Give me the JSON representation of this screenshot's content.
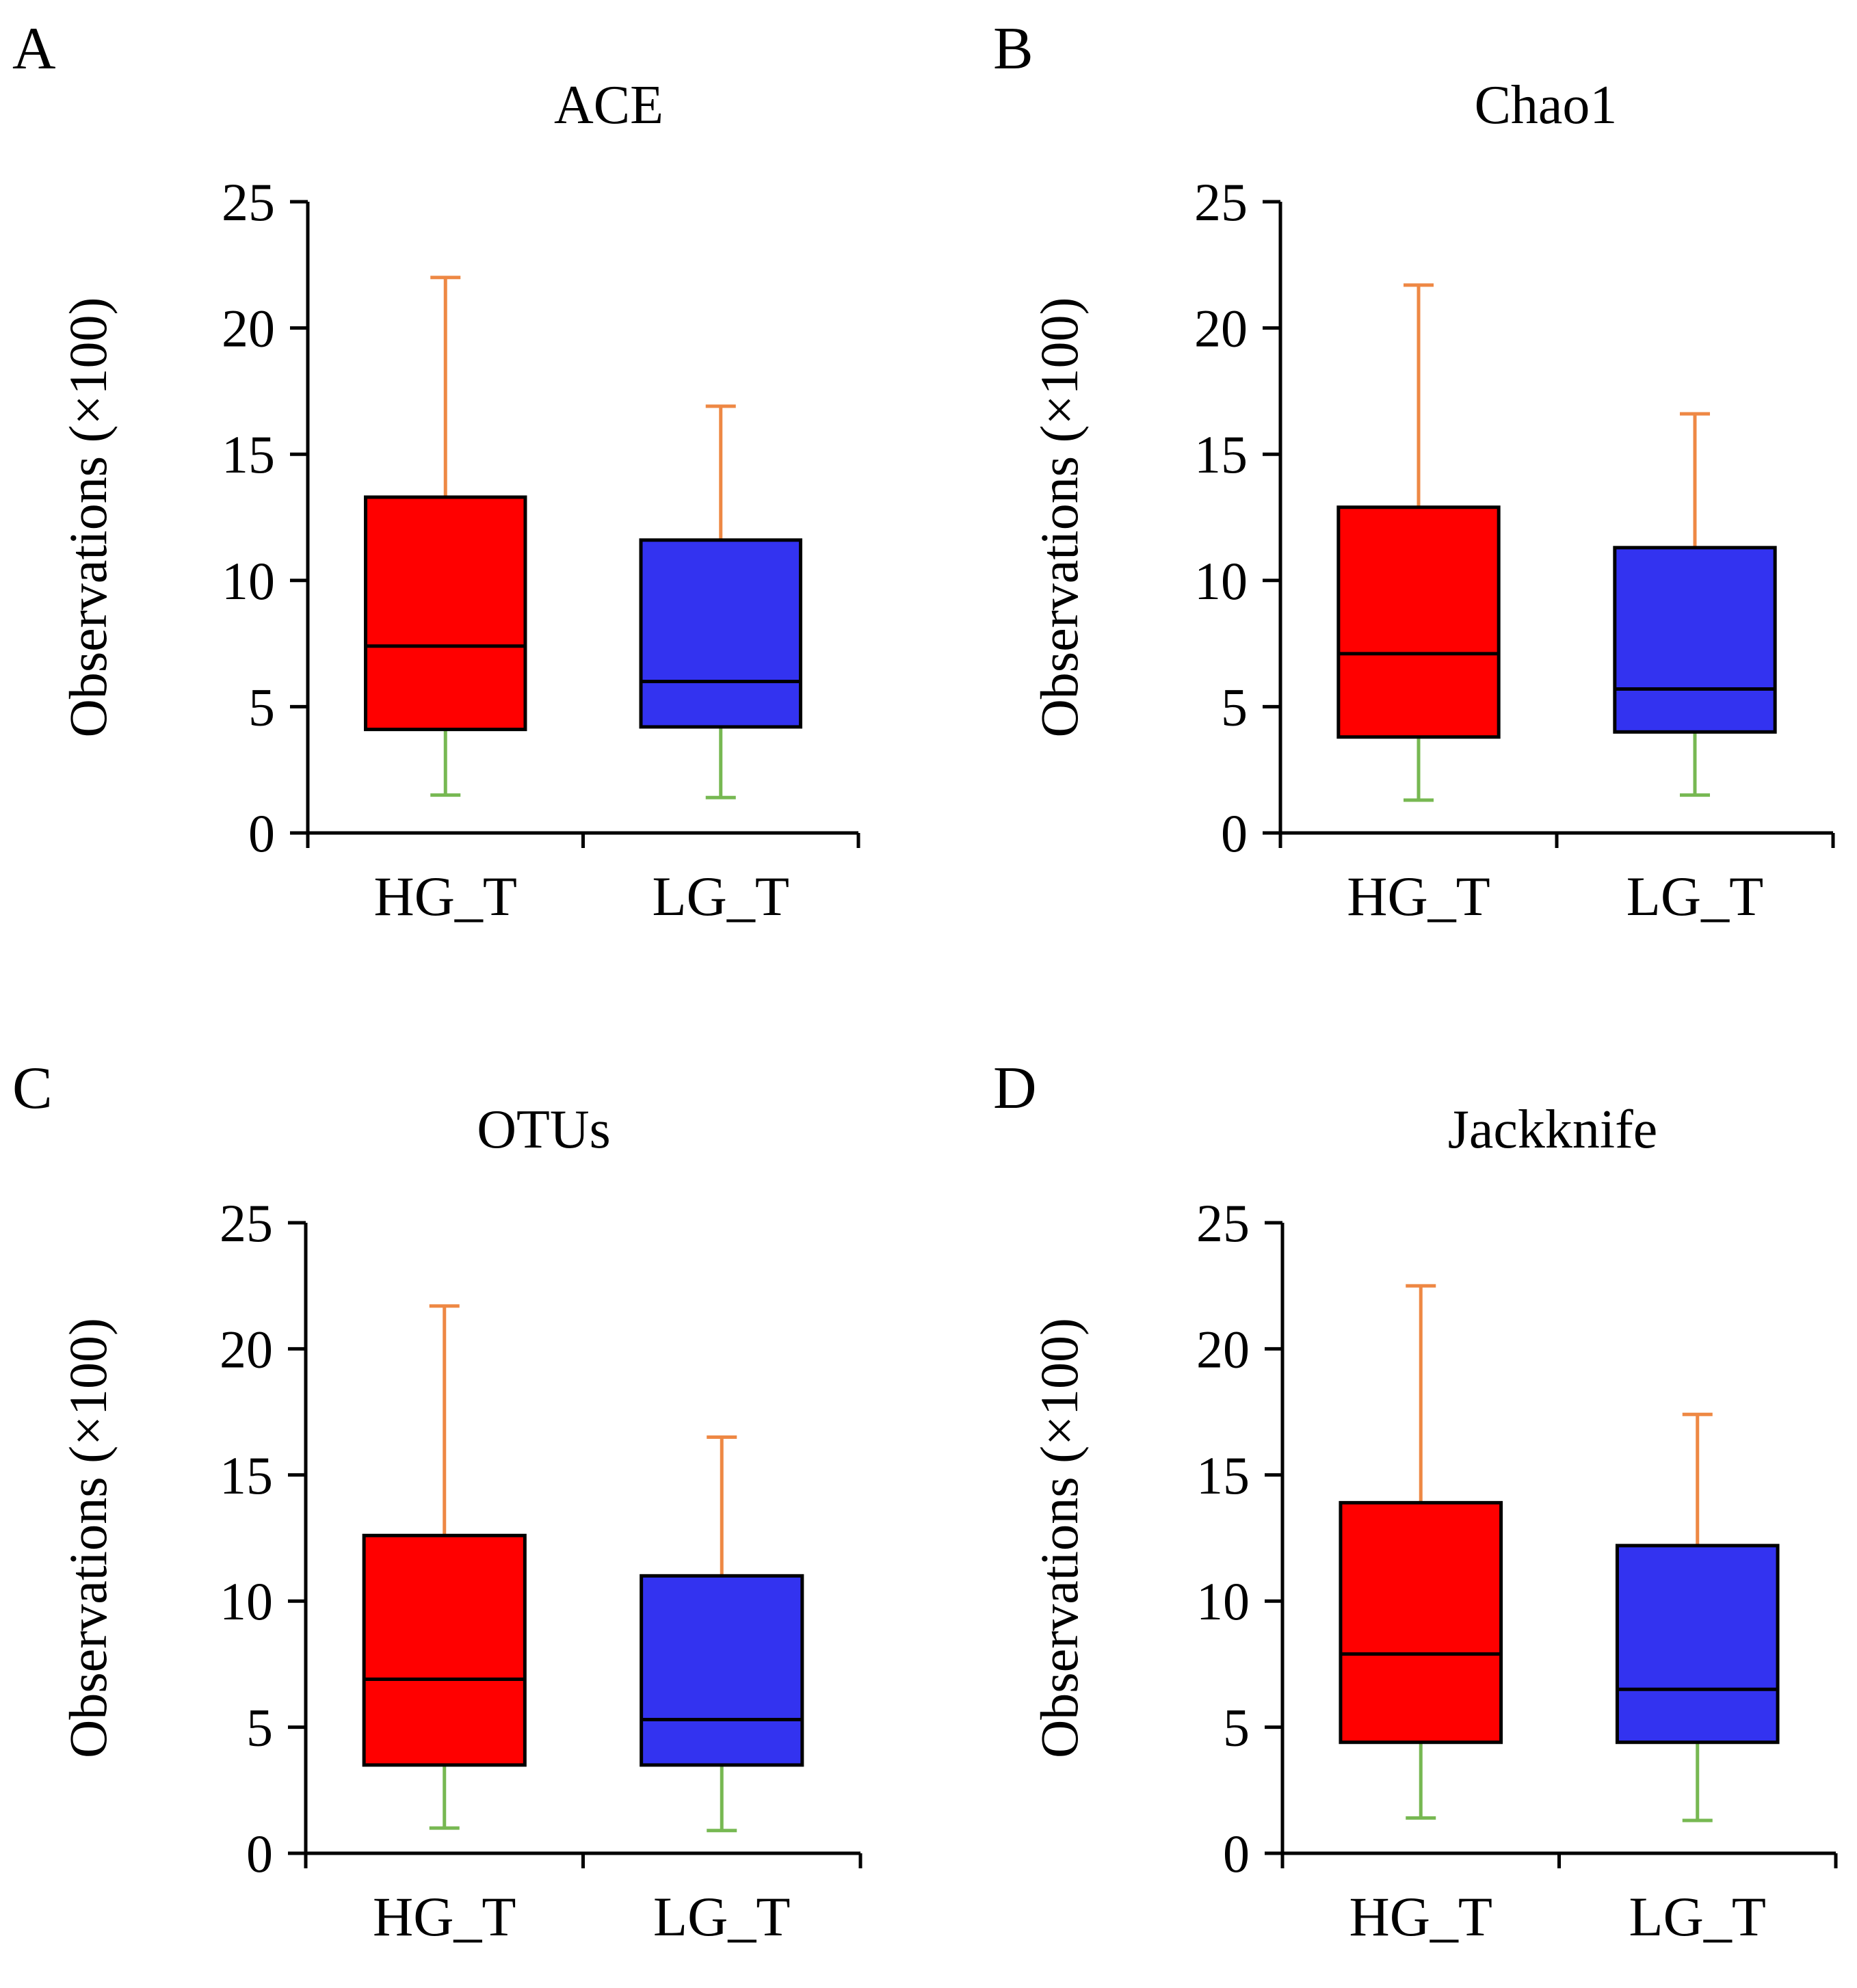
{
  "chart_data": [
    {
      "type": "boxplot",
      "panel_label": "A",
      "title": "ACE",
      "ylabel": "Observations (×100)",
      "xlabel": "",
      "ylim": [
        0,
        25
      ],
      "yticks": [
        0,
        5,
        10,
        15,
        20,
        25
      ],
      "categories": [
        "HG_T",
        "LG_T"
      ],
      "boxes": [
        {
          "category": "HG_T",
          "min": 1.5,
          "q1": 4.1,
          "median": 7.4,
          "q3": 13.3,
          "max": 22.0,
          "fill": "#ff0000"
        },
        {
          "category": "LG_T",
          "min": 1.4,
          "q1": 4.2,
          "median": 6.0,
          "q3": 11.6,
          "max": 16.9,
          "fill": "#3333f0"
        }
      ]
    },
    {
      "type": "boxplot",
      "panel_label": "B",
      "title": "Chao1",
      "ylabel": "Observations (×100)",
      "xlabel": "",
      "ylim": [
        0,
        25
      ],
      "yticks": [
        0,
        5,
        10,
        15,
        20,
        25
      ],
      "categories": [
        "HG_T",
        "LG_T"
      ],
      "boxes": [
        {
          "category": "HG_T",
          "min": 1.3,
          "q1": 3.8,
          "median": 7.1,
          "q3": 12.9,
          "max": 21.7,
          "fill": "#ff0000"
        },
        {
          "category": "LG_T",
          "min": 1.5,
          "q1": 4.0,
          "median": 5.7,
          "q3": 11.3,
          "max": 16.6,
          "fill": "#3333f0"
        }
      ]
    },
    {
      "type": "boxplot",
      "panel_label": "C",
      "title": "OTUs",
      "ylabel": "Observations (×100)",
      "xlabel": "",
      "ylim": [
        0,
        25
      ],
      "yticks": [
        0,
        5,
        10,
        15,
        20,
        25
      ],
      "categories": [
        "HG_T",
        "LG_T"
      ],
      "boxes": [
        {
          "category": "HG_T",
          "min": 1.0,
          "q1": 3.5,
          "median": 6.9,
          "q3": 12.6,
          "max": 21.7,
          "fill": "#ff0000"
        },
        {
          "category": "LG_T",
          "min": 0.9,
          "q1": 3.5,
          "median": 5.3,
          "q3": 11.0,
          "max": 16.5,
          "fill": "#3333f0"
        }
      ]
    },
    {
      "type": "boxplot",
      "panel_label": "D",
      "title": "Jackknife",
      "ylabel": "Observations (×100)",
      "xlabel": "",
      "ylim": [
        0,
        25
      ],
      "yticks": [
        0,
        5,
        10,
        15,
        20,
        25
      ],
      "categories": [
        "HG_T",
        "LG_T"
      ],
      "boxes": [
        {
          "category": "HG_T",
          "min": 1.4,
          "q1": 4.4,
          "median": 7.9,
          "q3": 13.9,
          "max": 22.5,
          "fill": "#ff0000"
        },
        {
          "category": "LG_T",
          "min": 1.3,
          "q1": 4.4,
          "median": 6.5,
          "q3": 12.2,
          "max": 17.4,
          "fill": "#3333f0"
        }
      ]
    }
  ],
  "colors": {
    "upper_whisker": "#ee8844",
    "lower_whisker": "#77b852",
    "box_edge": "#000000"
  }
}
